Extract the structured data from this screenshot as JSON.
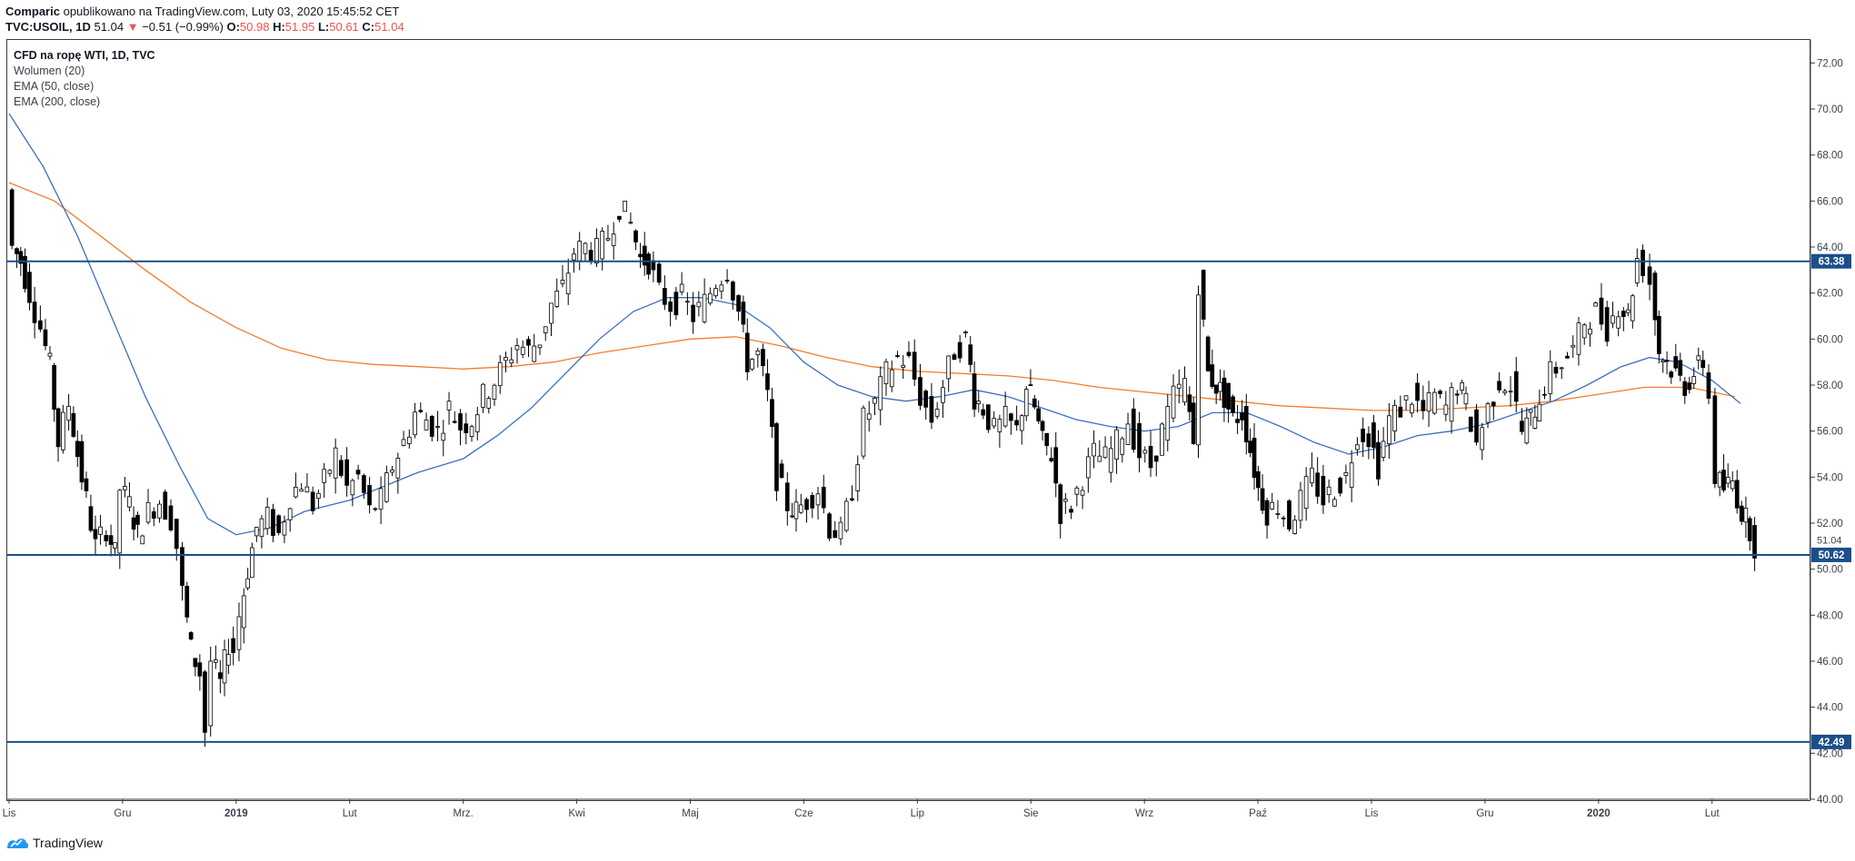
{
  "header": {
    "line1_author": "Comparic",
    "line1_rest": "opublikowano na TradingView.com, Luty 03, 2020 15:45:52 CET",
    "symbol": "TVC:USOIL, 1D",
    "last": "51.04",
    "change": "−0.51 (−0.99%)",
    "o_label": "O:",
    "o": "50.98",
    "h_label": "H:",
    "h": "51.95",
    "l_label": "L:",
    "l": "50.61",
    "c_label": "C:",
    "c": "51.04"
  },
  "legend": {
    "title": "CFD na ropę WTI, 1D, TVC",
    "vol": "Wolumen (20)",
    "ema50": "EMA (50, close)",
    "ema200": "EMA (200, close)"
  },
  "footer": {
    "brand": "TradingView"
  },
  "colors": {
    "up": "#ffffff",
    "down": "#000000",
    "ema50": "#3b6fbf",
    "ema200": "#f57c2a",
    "hline": "#1b4f8a",
    "badge": "#1b4f8a"
  },
  "chart_data": {
    "type": "candlestick",
    "ylim": [
      40,
      73
    ],
    "y_ticks": [
      "40.00",
      "42.00",
      "44.00",
      "46.00",
      "48.00",
      "50.00",
      "52.00",
      "54.00",
      "56.00",
      "58.00",
      "60.00",
      "62.00",
      "64.00",
      "66.00",
      "68.00",
      "70.00",
      "72.00"
    ],
    "x_ticks": [
      "Lis",
      "Gru",
      "2019",
      "Lut",
      "Mrz.",
      "Kwi",
      "Maj",
      "Cze",
      "Lip",
      "Sie",
      "Wrz",
      "Paź",
      "Lis",
      "Gru",
      "2020",
      "Lut"
    ],
    "x_tick_pos": [
      0.0,
      1.0,
      2.0,
      3.0,
      4.0,
      5.0,
      6.0,
      7.0,
      8.0,
      9.0,
      10.0,
      11.0,
      12.0,
      13.0,
      14.0,
      15.0
    ],
    "x_span": [
      0,
      15.05
    ],
    "horizontal_levels": [
      {
        "value": 63.38,
        "label": "63.38"
      },
      {
        "value": 50.62,
        "label": "50.62"
      },
      {
        "value": 42.49,
        "label": "42.49"
      }
    ],
    "last_price": {
      "value": 51.04,
      "label": "51.04"
    },
    "close_path": [
      [
        0.0,
        66.5
      ],
      [
        0.05,
        64.0
      ],
      [
        0.12,
        63.4
      ],
      [
        0.2,
        62.0
      ],
      [
        0.3,
        60.5
      ],
      [
        0.38,
        58.8
      ],
      [
        0.45,
        55.5
      ],
      [
        0.55,
        57.2
      ],
      [
        0.62,
        55.0
      ],
      [
        0.7,
        53.0
      ],
      [
        0.78,
        51.0
      ],
      [
        0.88,
        51.8
      ],
      [
        0.95,
        50.6
      ],
      [
        1.0,
        53.5
      ],
      [
        1.08,
        52.8
      ],
      [
        1.15,
        51.5
      ],
      [
        1.25,
        52.5
      ],
      [
        1.35,
        53.0
      ],
      [
        1.45,
        52.2
      ],
      [
        1.5,
        51.0
      ],
      [
        1.55,
        49.0
      ],
      [
        1.62,
        46.5
      ],
      [
        1.7,
        45.5
      ],
      [
        1.75,
        43.0
      ],
      [
        1.8,
        46.0
      ],
      [
        1.88,
        45.0
      ],
      [
        1.95,
        46.8
      ],
      [
        2.0,
        46.5
      ],
      [
        2.05,
        48.0
      ],
      [
        2.12,
        50.0
      ],
      [
        2.2,
        51.8
      ],
      [
        2.3,
        52.2
      ],
      [
        2.4,
        51.5
      ],
      [
        2.5,
        53.2
      ],
      [
        2.6,
        53.8
      ],
      [
        2.7,
        52.8
      ],
      [
        2.8,
        53.8
      ],
      [
        2.9,
        55.0
      ],
      [
        3.0,
        53.5
      ],
      [
        3.1,
        54.0
      ],
      [
        3.2,
        52.5
      ],
      [
        3.3,
        53.0
      ],
      [
        3.4,
        54.5
      ],
      [
        3.5,
        55.5
      ],
      [
        3.6,
        56.8
      ],
      [
        3.7,
        56.5
      ],
      [
        3.8,
        56.0
      ],
      [
        3.9,
        57.0
      ],
      [
        4.0,
        56.2
      ],
      [
        4.1,
        56.5
      ],
      [
        4.2,
        57.5
      ],
      [
        4.3,
        58.2
      ],
      [
        4.4,
        59.0
      ],
      [
        4.5,
        59.8
      ],
      [
        4.6,
        59.5
      ],
      [
        4.7,
        60.0
      ],
      [
        4.8,
        61.5
      ],
      [
        4.9,
        62.2
      ],
      [
        5.0,
        63.8
      ],
      [
        5.1,
        64.0
      ],
      [
        5.2,
        63.8
      ],
      [
        5.3,
        64.5
      ],
      [
        5.4,
        65.8
      ],
      [
        5.5,
        65.0
      ],
      [
        5.58,
        63.5
      ],
      [
        5.65,
        63.4
      ],
      [
        5.75,
        62.0
      ],
      [
        5.85,
        61.5
      ],
      [
        5.95,
        61.8
      ],
      [
        6.05,
        61.0
      ],
      [
        6.15,
        61.6
      ],
      [
        6.25,
        62.5
      ],
      [
        6.35,
        63.0
      ],
      [
        6.45,
        61.2
      ],
      [
        6.52,
        59.0
      ],
      [
        6.62,
        59.3
      ],
      [
        6.7,
        57.5
      ],
      [
        6.78,
        54.0
      ],
      [
        6.88,
        52.8
      ],
      [
        6.95,
        52.5
      ],
      [
        7.05,
        53.0
      ],
      [
        7.15,
        53.5
      ],
      [
        7.25,
        51.8
      ],
      [
        7.35,
        51.5
      ],
      [
        7.45,
        53.5
      ],
      [
        7.55,
        56.5
      ],
      [
        7.65,
        57.2
      ],
      [
        7.75,
        58.5
      ],
      [
        7.85,
        59.2
      ],
      [
        7.95,
        59.0
      ],
      [
        8.05,
        57.5
      ],
      [
        8.15,
        56.5
      ],
      [
        8.25,
        58.0
      ],
      [
        8.35,
        59.5
      ],
      [
        8.45,
        60.0
      ],
      [
        8.52,
        57.5
      ],
      [
        8.6,
        57.0
      ],
      [
        8.7,
        56.0
      ],
      [
        8.8,
        56.5
      ],
      [
        8.9,
        56.0
      ],
      [
        8.98,
        58.0
      ],
      [
        9.05,
        57.0
      ],
      [
        9.12,
        55.5
      ],
      [
        9.2,
        55.0
      ],
      [
        9.28,
        52.5
      ],
      [
        9.38,
        52.8
      ],
      [
        9.48,
        54.0
      ],
      [
        9.58,
        55.0
      ],
      [
        9.68,
        54.8
      ],
      [
        9.78,
        55.5
      ],
      [
        9.88,
        56.5
      ],
      [
        9.98,
        55.0
      ],
      [
        10.08,
        54.5
      ],
      [
        10.18,
        56.0
      ],
      [
        10.28,
        57.5
      ],
      [
        10.38,
        58.0
      ],
      [
        10.45,
        55.5
      ],
      [
        10.5,
        62.5
      ],
      [
        10.58,
        58.5
      ],
      [
        10.65,
        58.0
      ],
      [
        10.72,
        57.5
      ],
      [
        10.8,
        56.5
      ],
      [
        10.88,
        56.8
      ],
      [
        10.95,
        55.2
      ],
      [
        11.02,
        53.5
      ],
      [
        11.1,
        52.5
      ],
      [
        11.2,
        52.8
      ],
      [
        11.3,
        52.0
      ],
      [
        11.4,
        53.0
      ],
      [
        11.5,
        54.0
      ],
      [
        11.6,
        53.0
      ],
      [
        11.7,
        53.5
      ],
      [
        11.8,
        54.0
      ],
      [
        11.9,
        56.0
      ],
      [
        12.0,
        55.8
      ],
      [
        12.08,
        54.5
      ],
      [
        12.18,
        56.5
      ],
      [
        12.28,
        57.0
      ],
      [
        12.38,
        57.5
      ],
      [
        12.48,
        56.8
      ],
      [
        12.58,
        57.5
      ],
      [
        12.68,
        57.0
      ],
      [
        12.78,
        58.0
      ],
      [
        12.85,
        57.2
      ],
      [
        12.95,
        55.5
      ],
      [
        13.05,
        57.0
      ],
      [
        13.15,
        58.2
      ],
      [
        13.25,
        58.0
      ],
      [
        13.35,
        56.0
      ],
      [
        13.42,
        56.5
      ],
      [
        13.5,
        57.5
      ],
      [
        13.6,
        58.5
      ],
      [
        13.7,
        59.0
      ],
      [
        13.8,
        59.5
      ],
      [
        13.9,
        60.8
      ],
      [
        14.0,
        61.2
      ],
      [
        14.1,
        60.5
      ],
      [
        14.2,
        61.5
      ],
      [
        14.28,
        61.0
      ],
      [
        14.36,
        63.5
      ],
      [
        14.42,
        63.2
      ],
      [
        14.48,
        62.5
      ],
      [
        14.55,
        59.5
      ],
      [
        14.62,
        59.0
      ],
      [
        14.7,
        58.5
      ],
      [
        14.78,
        58.0
      ],
      [
        14.86,
        58.5
      ],
      [
        14.94,
        59.0
      ],
      [
        15.0,
        57.5
      ],
      [
        15.05,
        54.0
      ],
      [
        15.12,
        53.5
      ],
      [
        15.2,
        53.8
      ],
      [
        15.28,
        52.5
      ],
      [
        15.35,
        51.8
      ],
      [
        15.4,
        51.04
      ]
    ],
    "ema50": [
      [
        0.0,
        69.8
      ],
      [
        0.3,
        67.5
      ],
      [
        0.6,
        64.5
      ],
      [
        0.9,
        61.0
      ],
      [
        1.2,
        57.5
      ],
      [
        1.5,
        54.5
      ],
      [
        1.75,
        52.2
      ],
      [
        2.0,
        51.5
      ],
      [
        2.3,
        51.8
      ],
      [
        2.6,
        52.5
      ],
      [
        3.0,
        53.0
      ],
      [
        3.3,
        53.6
      ],
      [
        3.6,
        54.2
      ],
      [
        4.0,
        54.8
      ],
      [
        4.3,
        55.8
      ],
      [
        4.6,
        57.0
      ],
      [
        4.9,
        58.5
      ],
      [
        5.2,
        60.0
      ],
      [
        5.5,
        61.2
      ],
      [
        5.8,
        61.8
      ],
      [
        6.1,
        61.8
      ],
      [
        6.4,
        61.5
      ],
      [
        6.7,
        60.5
      ],
      [
        7.0,
        59.0
      ],
      [
        7.3,
        58.0
      ],
      [
        7.6,
        57.5
      ],
      [
        7.9,
        57.3
      ],
      [
        8.2,
        57.5
      ],
      [
        8.5,
        57.8
      ],
      [
        8.8,
        57.5
      ],
      [
        9.1,
        57.0
      ],
      [
        9.4,
        56.5
      ],
      [
        9.7,
        56.2
      ],
      [
        10.0,
        56.0
      ],
      [
        10.3,
        56.2
      ],
      [
        10.6,
        56.8
      ],
      [
        10.9,
        56.8
      ],
      [
        11.2,
        56.2
      ],
      [
        11.5,
        55.5
      ],
      [
        11.8,
        55.0
      ],
      [
        12.1,
        55.3
      ],
      [
        12.4,
        55.8
      ],
      [
        12.7,
        56.0
      ],
      [
        13.0,
        56.3
      ],
      [
        13.3,
        56.8
      ],
      [
        13.6,
        57.3
      ],
      [
        13.9,
        58.0
      ],
      [
        14.2,
        58.8
      ],
      [
        14.45,
        59.2
      ],
      [
        14.7,
        59.0
      ],
      [
        15.0,
        58.2
      ],
      [
        15.25,
        57.2
      ]
    ],
    "ema200": [
      [
        0.0,
        66.8
      ],
      [
        0.4,
        66.0
      ],
      [
        0.8,
        64.5
      ],
      [
        1.2,
        63.0
      ],
      [
        1.6,
        61.6
      ],
      [
        2.0,
        60.5
      ],
      [
        2.4,
        59.6
      ],
      [
        2.8,
        59.1
      ],
      [
        3.2,
        58.9
      ],
      [
        3.6,
        58.8
      ],
      [
        4.0,
        58.7
      ],
      [
        4.4,
        58.8
      ],
      [
        4.8,
        59.0
      ],
      [
        5.2,
        59.4
      ],
      [
        5.6,
        59.7
      ],
      [
        6.0,
        60.0
      ],
      [
        6.4,
        60.1
      ],
      [
        6.8,
        59.7
      ],
      [
        7.2,
        59.2
      ],
      [
        7.6,
        58.8
      ],
      [
        8.0,
        58.6
      ],
      [
        8.4,
        58.5
      ],
      [
        8.8,
        58.4
      ],
      [
        9.2,
        58.2
      ],
      [
        9.6,
        57.9
      ],
      [
        10.0,
        57.7
      ],
      [
        10.4,
        57.5
      ],
      [
        10.8,
        57.3
      ],
      [
        11.2,
        57.1
      ],
      [
        11.6,
        57.0
      ],
      [
        12.0,
        56.9
      ],
      [
        12.4,
        56.9
      ],
      [
        12.8,
        57.0
      ],
      [
        13.2,
        57.1
      ],
      [
        13.6,
        57.3
      ],
      [
        14.0,
        57.6
      ],
      [
        14.4,
        57.9
      ],
      [
        14.8,
        57.9
      ],
      [
        15.2,
        57.5
      ]
    ]
  }
}
